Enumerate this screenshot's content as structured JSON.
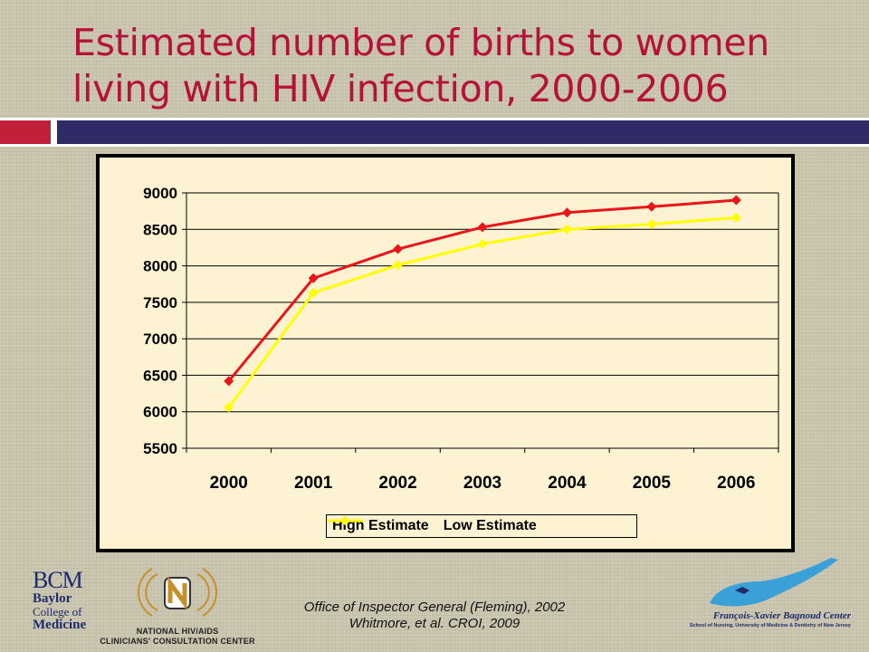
{
  "slide": {
    "title_line1": "Estimated number of births to women",
    "title_line2": "living with HIV infection, 2000-2006",
    "citation_line1": "Office of Inspector General (Fleming), 2002",
    "citation_line2": "Whitmore, et al. CROI, 2009"
  },
  "logos": {
    "bcm_mark": "BCM",
    "bcm_line1": "Baylor",
    "bcm_line2": "College of",
    "bcm_line3": "Medicine",
    "nccc_line1": "NATIONAL HIV/AIDS",
    "nccc_line2": "CLINICIANS' CONSULTATION CENTER",
    "fxb_name": "François-Xavier Bagnoud Center",
    "fxb_sub": "School of Nursing, University of Medicine & Dentistry of New Jersey"
  },
  "colors": {
    "title": "#b5123a",
    "high_estimate": "#e8151b",
    "low_estimate": "#ffff00",
    "plot_background": "#fdf3d2"
  },
  "chart_data": {
    "type": "line",
    "categories": [
      "2000",
      "2001",
      "2002",
      "2003",
      "2004",
      "2005",
      "2006"
    ],
    "series": [
      {
        "name": "High Estimate",
        "values": [
          6420,
          7830,
          8230,
          8530,
          8730,
          8810,
          8900
        ]
      },
      {
        "name": "Low Estimate",
        "values": [
          6060,
          7630,
          8010,
          8300,
          8500,
          8570,
          8660
        ]
      }
    ],
    "title": "",
    "xlabel": "",
    "ylabel": "",
    "ylim": [
      5500,
      9000
    ],
    "yticks": [
      "5500",
      "6000",
      "6500",
      "7000",
      "7500",
      "8000",
      "8500",
      "9000"
    ],
    "grid": "horizontal",
    "legend_position": "bottom",
    "markers": "diamond"
  }
}
